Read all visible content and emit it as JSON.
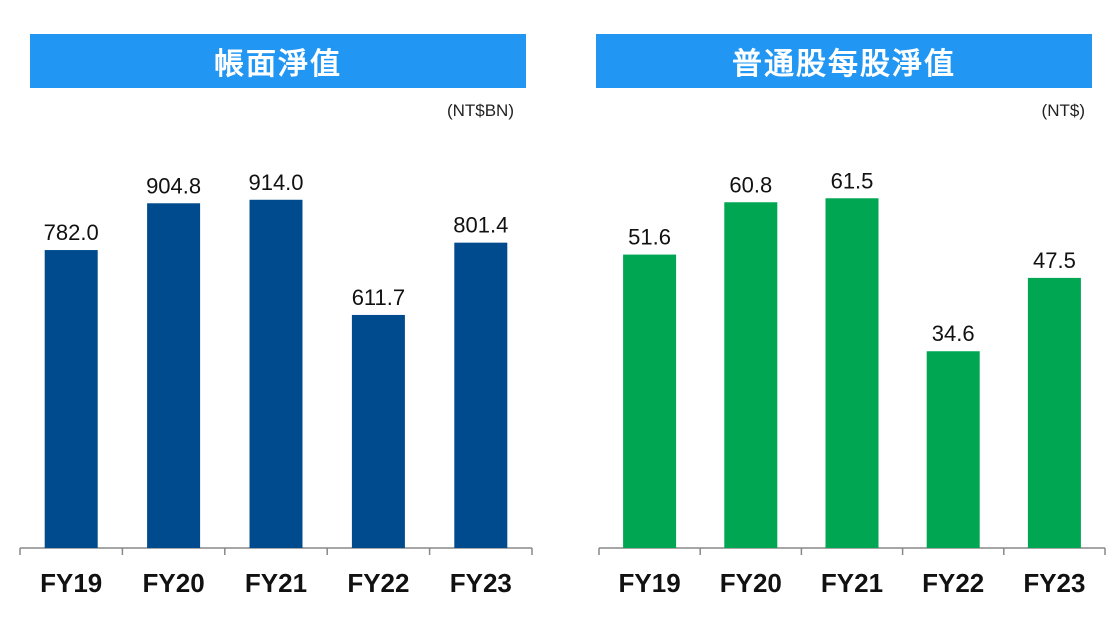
{
  "chart_data": [
    {
      "type": "bar",
      "title": "帳面淨值",
      "unit": "(NT$BN)",
      "categories": [
        "FY19",
        "FY20",
        "FY21",
        "FY22",
        "FY23"
      ],
      "values": [
        782.0,
        904.8,
        914.0,
        611.7,
        801.4
      ],
      "value_labels": [
        "782.0",
        "904.8",
        "914.0",
        "611.7",
        "801.4"
      ],
      "ylim": [
        0,
        1000
      ],
      "grid": false,
      "bar_color": "#004b8d",
      "banner_color": "#2196f3"
    },
    {
      "type": "bar",
      "title": "普通股每股淨值",
      "unit": "(NT$)",
      "categories": [
        "FY19",
        "FY20",
        "FY21",
        "FY22",
        "FY23"
      ],
      "values": [
        51.6,
        60.8,
        61.5,
        34.6,
        47.5
      ],
      "value_labels": [
        "51.6",
        "60.8",
        "61.5",
        "34.6",
        "47.5"
      ],
      "ylim": [
        0,
        67
      ],
      "grid": false,
      "bar_color": "#00a651",
      "banner_color": "#2196f3"
    }
  ]
}
